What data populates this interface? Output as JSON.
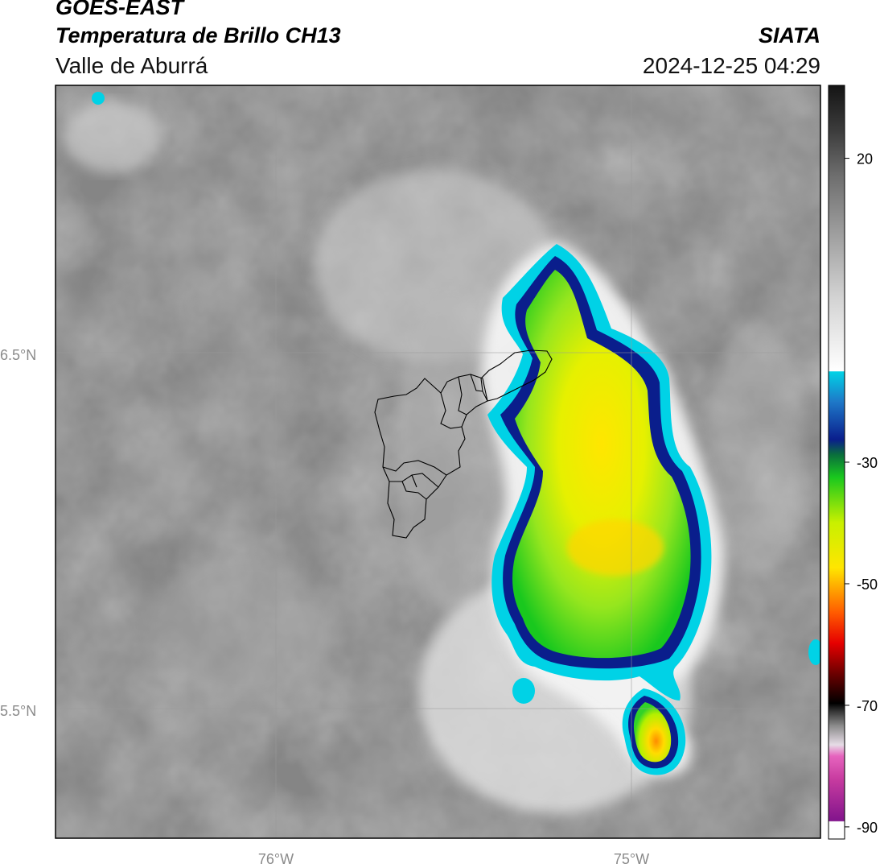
{
  "header": {
    "title_line1": "GOES-EAST",
    "title_line2": "Temperatura de Brillo CH13",
    "region": "Valle de Aburrá",
    "organization": "SIATA",
    "datetime": "2024-12-25 04:29"
  },
  "map": {
    "lat_labels": [
      "6.5°N",
      "5.5°N"
    ],
    "lon_labels": [
      "76°W",
      "75°W"
    ],
    "label_color": "#8a8a8a",
    "gridline_color": "#9a9a9a"
  },
  "colorbar": {
    "tick_labels": [
      "20",
      "-30",
      "-50",
      "-70",
      "-90"
    ],
    "tick_values": [
      20,
      -30,
      -50,
      -70,
      -90
    ],
    "range": [
      -92,
      32
    ],
    "colors": {
      "warm_gray": "#7c7c7c",
      "light_gray": "#f2f2f2",
      "cyan": "#00d2e6",
      "dark_blue": "#0a1e8c",
      "green": "#19c81e",
      "yellow_green": "#c8f000",
      "yellow": "#f5e600",
      "orange": "#ff8c00",
      "red": "#e60000",
      "pink": "#dc5ab4",
      "purple": "#82148c"
    }
  }
}
